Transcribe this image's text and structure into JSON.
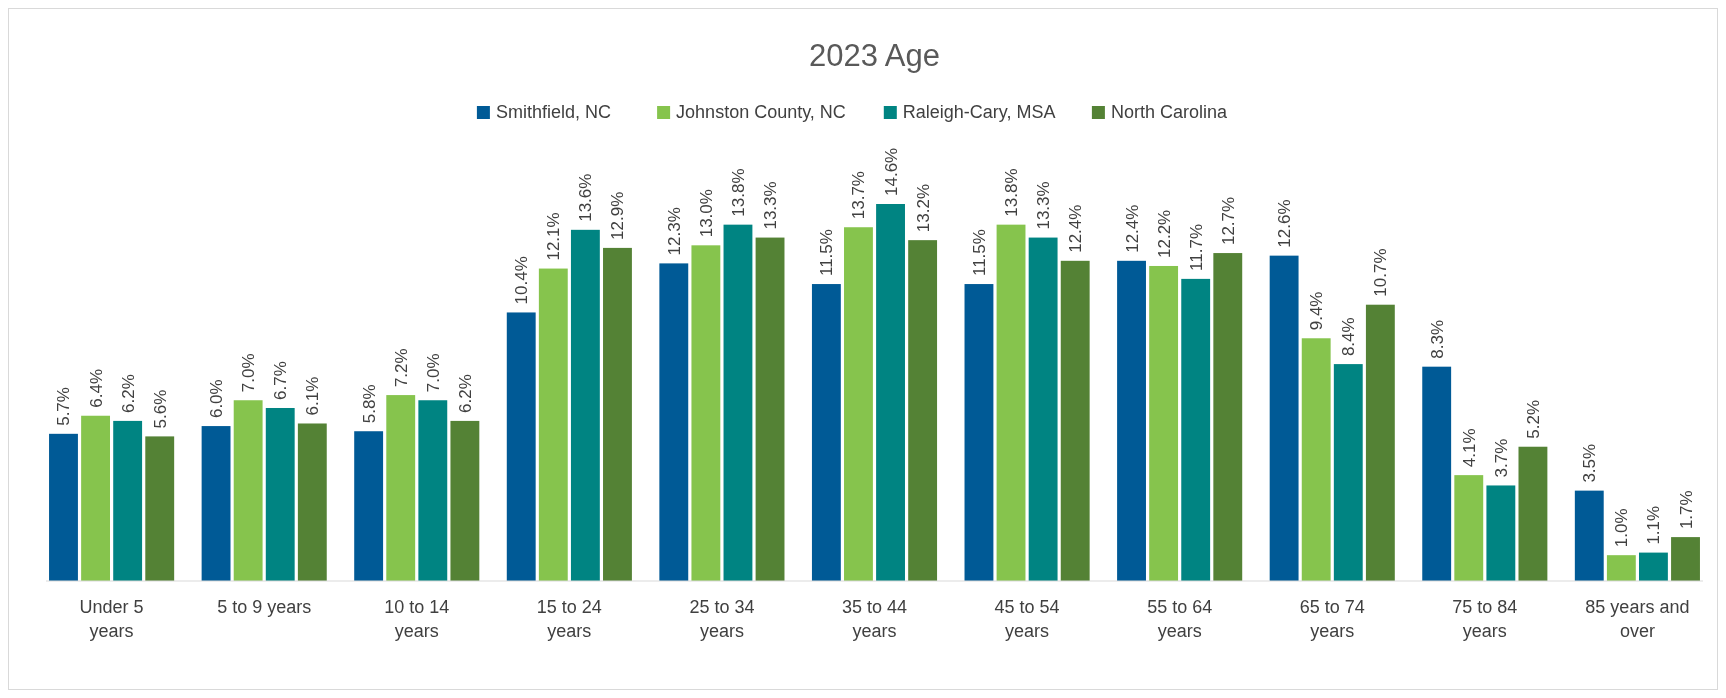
{
  "chart_data": {
    "type": "bar",
    "title": "2023 Age",
    "legend": "top",
    "categories": [
      "Under 5 years",
      "5 to 9 years",
      "10 to 14 years",
      "15 to 24 years",
      "25 to 34 years",
      "35 to 44 years",
      "45 to 54 years",
      "55 to 64 years",
      "65 to 74 years",
      "75 to 84 years",
      "85 years and over"
    ],
    "series": [
      {
        "name": "Smithfield, NC",
        "color": "#005a96",
        "values": [
          5.7,
          6.0,
          5.8,
          10.4,
          12.3,
          11.5,
          11.5,
          12.4,
          12.6,
          8.3,
          3.5
        ],
        "value_labels": [
          "5.7%",
          "6.0%",
          "5.8%",
          "10.4%",
          "12.3%",
          "11.5%",
          "11.5%",
          "12.4%",
          "12.6%",
          "8.3%",
          "3.5%"
        ]
      },
      {
        "name": "Johnston County, NC",
        "color": "#86c44d",
        "values": [
          6.4,
          7.0,
          7.2,
          12.1,
          13.0,
          13.7,
          13.8,
          12.2,
          9.4,
          4.1,
          1.0
        ],
        "value_labels": [
          "6.4%",
          "7.0%",
          "7.2%",
          "12.1%",
          "13.0%",
          "13.7%",
          "13.8%",
          "12.2%",
          "9.4%",
          "4.1%",
          "1.0%"
        ]
      },
      {
        "name": "Raleigh-Cary, MSA",
        "color": "#008482",
        "values": [
          6.2,
          6.7,
          7.0,
          13.6,
          13.8,
          14.6,
          13.3,
          11.7,
          8.4,
          3.7,
          1.1
        ],
        "value_labels": [
          "6.2%",
          "6.7%",
          "7.0%",
          "13.6%",
          "13.8%",
          "14.6%",
          "13.3%",
          "11.7%",
          "8.4%",
          "3.7%",
          "1.1%"
        ]
      },
      {
        "name": "North Carolina",
        "color": "#548235",
        "values": [
          5.6,
          6.1,
          6.2,
          12.9,
          13.3,
          13.2,
          12.4,
          12.7,
          10.7,
          5.2,
          1.7
        ],
        "value_labels": [
          "5.6%",
          "6.1%",
          "6.2%",
          "12.9%",
          "13.3%",
          "13.2%",
          "12.4%",
          "12.7%",
          "10.7%",
          "5.2%",
          "1.7%"
        ]
      }
    ]
  }
}
